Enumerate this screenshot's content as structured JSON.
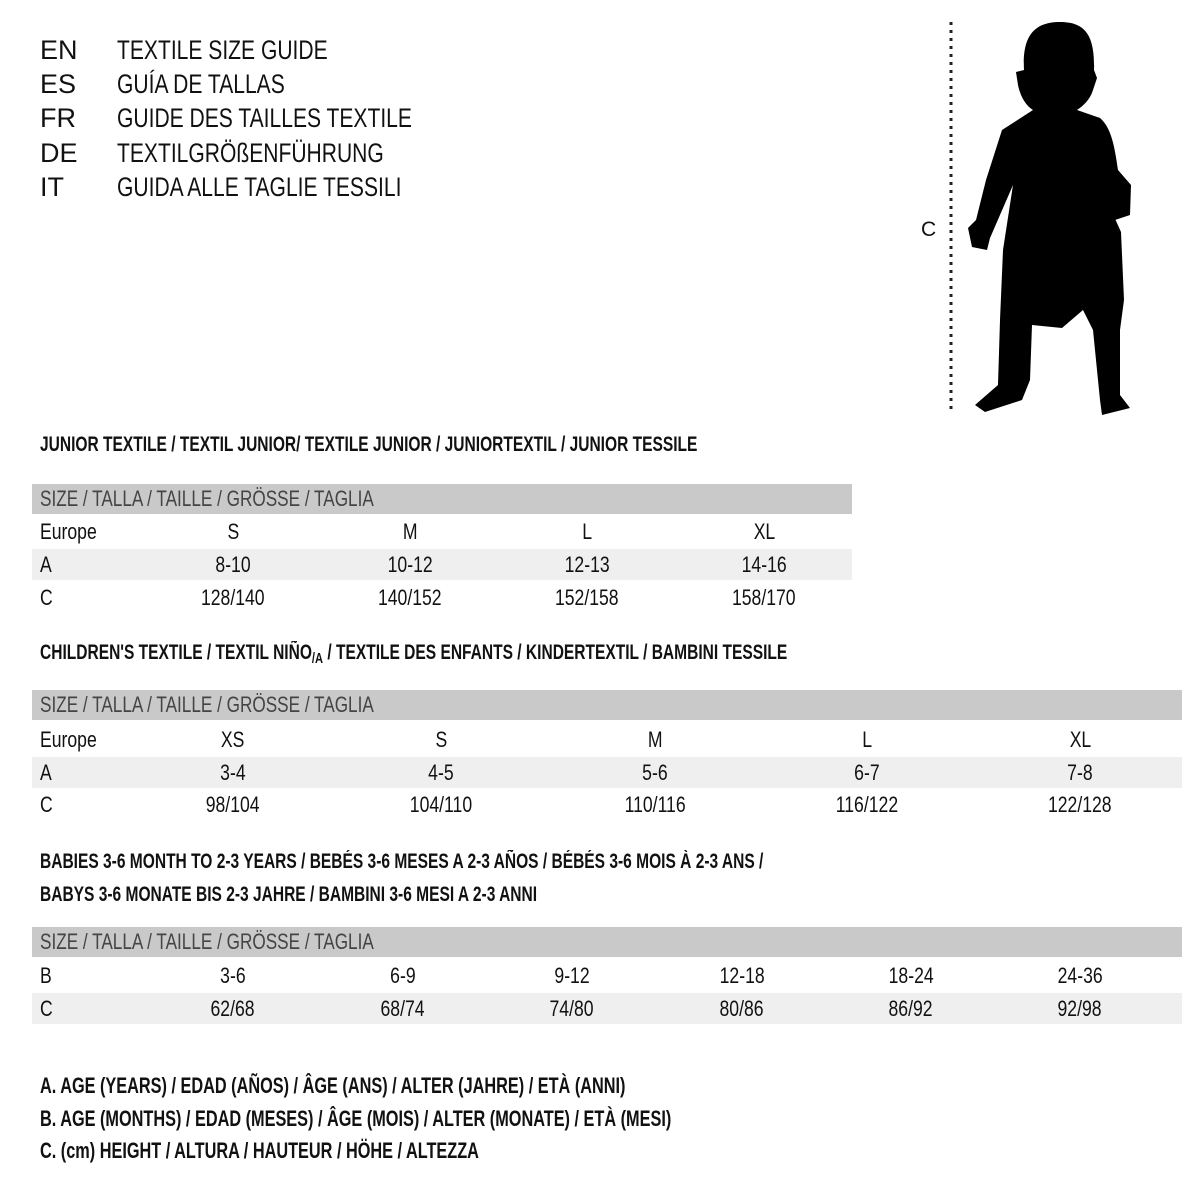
{
  "titles": [
    {
      "code": "EN",
      "text": "TEXTILE SIZE GUIDE"
    },
    {
      "code": "ES",
      "text": "GUÍA DE TALLAS"
    },
    {
      "code": "FR",
      "text": "GUIDE DES TAILLES TEXTILE"
    },
    {
      "code": "DE",
      "text": "TEXTILGRÖßENFÜHRUNG"
    },
    {
      "code": "IT",
      "text": "GUIDA ALLE TAGLIE TESSILI"
    }
  ],
  "figure": {
    "measure_label": "C",
    "icon": "child-silhouette-icon"
  },
  "size_header": "SIZE / TALLA / TAILLE / GRÖSSE / TAGLIA",
  "junior": {
    "heading": "JUNIOR TEXTILE / TEXTIL JUNIOR/ TEXTILE JUNIOR / JUNIORTEXTIL / JUNIOR TESSILE",
    "rows": [
      {
        "label": "Europe",
        "values": [
          "S",
          "M",
          "L",
          "XL"
        ]
      },
      {
        "label": "A",
        "values": [
          "8-10",
          "10-12",
          "12-13",
          "14-16"
        ]
      },
      {
        "label": "C",
        "values": [
          "128/140",
          "140/152",
          "152/158",
          "158/170"
        ]
      }
    ]
  },
  "children": {
    "heading_pre": "CHILDREN'S TEXTILE / TEXTIL NIÑO",
    "heading_sub": "/A",
    "heading_post": " / TEXTILE DES ENFANTS / KINDERTEXTIL / BAMBINI TESSILE",
    "rows": [
      {
        "label": "Europe",
        "values": [
          "XS",
          "S",
          "M",
          "L",
          "XL"
        ]
      },
      {
        "label": "A",
        "values": [
          "3-4",
          "4-5",
          "5-6",
          "6-7",
          "7-8"
        ]
      },
      {
        "label": "C",
        "values": [
          "98/104",
          "104/110",
          "110/116",
          "116/122",
          "122/128"
        ]
      }
    ]
  },
  "babies": {
    "heading_line1": "BABIES 3-6 MONTH TO 2-3 YEARS / BEBÉS 3-6 MESES A 2-3 AÑOS / BÉBÉS 3-6 MOIS À 2-3 ANS /",
    "heading_line2": "BABYS 3-6 MONATE BIS 2-3 JAHRE / BAMBINI 3-6 MESI A 2-3 ANNI",
    "rows": [
      {
        "label": "B",
        "values": [
          "3-6",
          "6-9",
          "9-12",
          "12-18",
          "18-24",
          "24-36"
        ]
      },
      {
        "label": "C",
        "values": [
          "62/68",
          "68/74",
          "74/80",
          "80/86",
          "86/92",
          "92/98"
        ]
      }
    ]
  },
  "legend": [
    "A. AGE (YEARS) / EDAD (AÑOS) / ÂGE (ANS) / ALTER (JAHRE) / ETÀ (ANNI)",
    "B. AGE (MONTHS) / EDAD (MESES) / ÂGE (MOIS) / ALTER (MONATE) / ETÀ (MESI)",
    "C. (cm) HEIGHT / ALTURA / HAUTEUR / HÖHE / ALTEZZA"
  ],
  "colors": {
    "header_bar": "#c9c9c9",
    "stripe": "#efefef",
    "text": "#111111"
  }
}
